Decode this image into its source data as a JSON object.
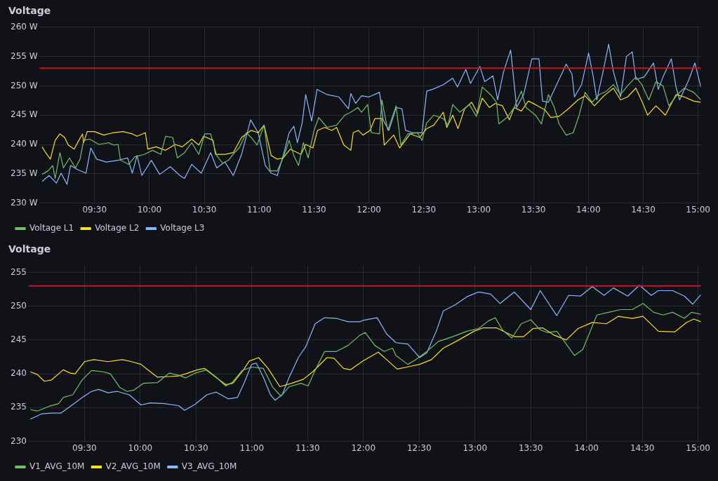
{
  "chart_data": [
    {
      "type": "line",
      "title": "Voltage",
      "xlim": [
        9,
        15.025
      ],
      "xticks": [
        {
          "value": 9.5,
          "label": "09:30"
        },
        {
          "value": 10,
          "label": "10:00"
        },
        {
          "value": 10.5,
          "label": "10:30"
        },
        {
          "value": 11,
          "label": "11:00"
        },
        {
          "value": 11.5,
          "label": "11:30"
        },
        {
          "value": 12,
          "label": "12:00"
        },
        {
          "value": 12.5,
          "label": "12:30"
        },
        {
          "value": 13,
          "label": "13:00"
        },
        {
          "value": 13.5,
          "label": "13:30"
        },
        {
          "value": 14,
          "label": "14:00"
        },
        {
          "value": 14.5,
          "label": "14:30"
        },
        {
          "value": 15,
          "label": "15:00"
        }
      ],
      "ylim": [
        230,
        260
      ],
      "yticks": [
        {
          "value": 230,
          "label": "230 W"
        },
        {
          "value": 235,
          "label": "235 W"
        },
        {
          "value": 240,
          "label": "240 W"
        },
        {
          "value": 245,
          "label": "245 W"
        },
        {
          "value": 250,
          "label": "250 W"
        },
        {
          "value": 255,
          "label": "255 W"
        },
        {
          "value": 260,
          "label": "260 W"
        }
      ],
      "grid": true,
      "legend": "bottom left",
      "ref_lines": [
        {
          "axis": "y",
          "value": 253,
          "color": "#c4162a"
        }
      ],
      "series": [
        {
          "name": "Voltage L1",
          "color": "#73bf69",
          "x": [
            9.022,
            9.076,
            9.119,
            9.141,
            9.184,
            9.216,
            9.271,
            9.325,
            9.368,
            9.4,
            9.455,
            9.541,
            9.628,
            9.671,
            9.714,
            9.736,
            9.812,
            9.866,
            9.952,
            10.028,
            10.104,
            10.147,
            10.212,
            10.255,
            10.32,
            10.385,
            10.45,
            10.504,
            10.558,
            10.613,
            10.667,
            10.721,
            10.775,
            10.818,
            10.883,
            10.926,
            10.981,
            11.045,
            11.1,
            11.165,
            11.219,
            11.273,
            11.316,
            11.359,
            11.403,
            11.446,
            11.5,
            11.543,
            11.619,
            11.706,
            11.781,
            11.835,
            11.9,
            11.933,
            11.989,
            12.022,
            12.097,
            12.118,
            12.172,
            12.248,
            12.291,
            12.355,
            12.441,
            12.484,
            12.527,
            12.592,
            12.678,
            12.721,
            12.764,
            12.829,
            12.915,
            12.98,
            13.033,
            13.109,
            13.163,
            13.184,
            13.259,
            13.324,
            13.389,
            13.432,
            13.518,
            13.572,
            13.636,
            13.69,
            13.733,
            13.798,
            13.862,
            13.916,
            13.97,
            14.034,
            14.099,
            14.164,
            14.228,
            14.293,
            14.357,
            14.433,
            14.487,
            14.551,
            14.616,
            14.68,
            14.734,
            14.81,
            14.874,
            14.96,
            15.025
          ],
          "values": [
            234.9,
            235.5,
            236.4,
            234.2,
            238.6,
            236.0,
            237.7,
            236.0,
            237.5,
            240.7,
            240.9,
            240.0,
            240.3,
            239.9,
            240.0,
            237.3,
            236.6,
            237.9,
            238.3,
            239.0,
            238.3,
            241.4,
            241.2,
            237.7,
            238.6,
            240.3,
            238.3,
            241.8,
            241.8,
            238.1,
            236.8,
            237.3,
            238.6,
            239.4,
            242.0,
            241.2,
            239.9,
            243.3,
            235.5,
            235.5,
            237.7,
            240.7,
            238.1,
            236.4,
            240.3,
            237.7,
            242.4,
            244.6,
            242.9,
            243.3,
            245.0,
            245.5,
            246.3,
            245.5,
            246.8,
            242.0,
            241.8,
            247.6,
            242.4,
            246.6,
            239.9,
            241.8,
            242.0,
            240.7,
            243.7,
            245.0,
            244.4,
            243.3,
            246.8,
            245.5,
            246.8,
            244.8,
            249.8,
            248.5,
            247.2,
            243.5,
            244.6,
            246.3,
            249.1,
            246.3,
            245.0,
            243.5,
            248.5,
            246.3,
            243.5,
            241.6,
            242.0,
            245.0,
            248.9,
            247.2,
            248.5,
            249.1,
            250.2,
            248.5,
            250.0,
            251.5,
            250.2,
            247.6,
            250.7,
            250.0,
            246.6,
            248.5,
            249.6,
            248.9,
            247.6
          ]
        },
        {
          "name": "Voltage L2",
          "color": "#fade2a",
          "x": [
            9.022,
            9.054,
            9.097,
            9.141,
            9.184,
            9.227,
            9.26,
            9.314,
            9.357,
            9.39,
            9.4,
            9.433,
            9.498,
            9.584,
            9.671,
            9.758,
            9.844,
            9.887,
            9.963,
            9.985,
            10.061,
            10.147,
            10.234,
            10.299,
            10.385,
            10.45,
            10.494,
            10.58,
            10.602,
            10.688,
            10.764,
            10.84,
            10.926,
            10.991,
            11.045,
            11.11,
            11.165,
            11.219,
            11.284,
            11.381,
            11.424,
            11.489,
            11.532,
            11.597,
            11.662,
            11.706,
            11.771,
            11.835,
            11.857,
            11.903,
            11.946,
            12.011,
            12.054,
            12.118,
            12.14,
            12.226,
            12.28,
            12.377,
            12.463,
            12.527,
            12.592,
            12.678,
            12.71,
            12.764,
            12.812,
            12.872,
            12.937,
            12.99,
            13.033,
            13.098,
            13.152,
            13.216,
            13.281,
            13.324,
            13.389,
            13.453,
            13.518,
            13.604,
            13.658,
            13.733,
            13.819,
            13.905,
            13.97,
            14.056,
            14.142,
            14.228,
            14.293,
            14.357,
            14.433,
            14.487,
            14.54,
            14.616,
            14.702,
            14.799,
            14.874,
            14.96,
            15.025
          ],
          "values": [
            239.6,
            238.6,
            237.5,
            240.7,
            241.8,
            241.2,
            239.9,
            239.2,
            240.7,
            241.8,
            240.3,
            242.2,
            242.2,
            241.6,
            242.0,
            242.2,
            241.8,
            241.4,
            242.0,
            239.2,
            239.6,
            239.0,
            240.0,
            239.6,
            240.9,
            239.9,
            241.4,
            240.7,
            238.3,
            238.3,
            238.6,
            241.2,
            242.4,
            242.0,
            243.3,
            238.1,
            237.5,
            237.7,
            239.2,
            238.3,
            240.0,
            239.4,
            242.4,
            242.9,
            242.4,
            242.9,
            239.9,
            239.0,
            242.0,
            242.4,
            241.6,
            242.4,
            244.4,
            244.4,
            239.9,
            241.6,
            239.4,
            241.8,
            241.2,
            242.7,
            243.3,
            245.5,
            242.9,
            245.0,
            242.7,
            246.1,
            247.2,
            245.3,
            247.9,
            246.3,
            247.0,
            246.6,
            244.2,
            246.3,
            245.7,
            247.4,
            246.8,
            245.9,
            244.6,
            244.8,
            246.1,
            247.6,
            248.3,
            246.6,
            248.3,
            249.6,
            247.6,
            248.1,
            249.6,
            247.4,
            245.0,
            246.6,
            245.0,
            248.5,
            248.1,
            247.4,
            247.2
          ]
        },
        {
          "name": "Voltage L3",
          "color": "#8ab8ff",
          "x": [
            9.022,
            9.087,
            9.152,
            9.195,
            9.249,
            9.281,
            9.346,
            9.422,
            9.465,
            9.519,
            9.606,
            9.714,
            9.801,
            9.844,
            9.887,
            9.931,
            10.017,
            10.093,
            10.19,
            10.277,
            10.32,
            10.385,
            10.472,
            10.558,
            10.613,
            10.688,
            10.764,
            10.84,
            10.922,
            10.991,
            11.056,
            11.11,
            11.165,
            11.219,
            11.273,
            11.316,
            11.348,
            11.392,
            11.424,
            11.478,
            11.528,
            11.619,
            11.727,
            11.814,
            11.835,
            11.879,
            11.933,
            12.0,
            12.097,
            12.129,
            12.183,
            12.248,
            12.301,
            12.334,
            12.398,
            12.484,
            12.527,
            12.581,
            12.678,
            12.764,
            12.807,
            12.883,
            12.926,
            13.012,
            13.055,
            13.13,
            13.173,
            13.227,
            13.292,
            13.346,
            13.41,
            13.485,
            13.55,
            13.582,
            13.636,
            13.733,
            13.798,
            13.851,
            13.873,
            13.938,
            14.002,
            14.045,
            14.077,
            14.131,
            14.185,
            14.228,
            14.293,
            14.347,
            14.4,
            14.433,
            14.508,
            14.594,
            14.637,
            14.68,
            14.756,
            14.799,
            14.831,
            14.917,
            14.971,
            15.025
          ],
          "values": [
            233.7,
            234.7,
            233.4,
            235.1,
            233.2,
            236.4,
            235.7,
            235.1,
            239.4,
            237.5,
            237.0,
            237.3,
            237.7,
            235.1,
            238.1,
            234.7,
            237.3,
            234.9,
            236.2,
            234.7,
            234.2,
            236.6,
            235.1,
            238.6,
            236.0,
            237.0,
            234.7,
            238.3,
            244.2,
            242.0,
            236.4,
            235.1,
            234.7,
            238.1,
            242.0,
            243.1,
            240.3,
            243.7,
            248.5,
            244.0,
            249.4,
            248.5,
            248.1,
            246.1,
            248.7,
            247.0,
            248.3,
            248.1,
            248.9,
            244.2,
            242.4,
            246.3,
            246.1,
            242.4,
            242.0,
            242.0,
            249.1,
            249.4,
            250.2,
            251.3,
            249.8,
            252.8,
            250.4,
            253.3,
            250.7,
            251.7,
            247.6,
            252.4,
            256.1,
            246.3,
            248.5,
            254.6,
            254.6,
            247.4,
            247.2,
            251.1,
            253.7,
            252.0,
            248.1,
            250.2,
            255.6,
            251.5,
            247.6,
            252.2,
            257.1,
            252.4,
            248.1,
            255.0,
            255.8,
            251.1,
            251.5,
            253.9,
            249.4,
            251.5,
            254.6,
            249.8,
            247.6,
            251.1,
            253.9,
            249.8
          ]
        }
      ]
    },
    {
      "type": "line",
      "title": "Voltage",
      "xlim": [
        9,
        15.025
      ],
      "xticks": [
        {
          "value": 9.5,
          "label": "09:30"
        },
        {
          "value": 10,
          "label": "10:00"
        },
        {
          "value": 10.5,
          "label": "10:30"
        },
        {
          "value": 11,
          "label": "11:00"
        },
        {
          "value": 11.5,
          "label": "11:30"
        },
        {
          "value": 12,
          "label": "12:00"
        },
        {
          "value": 12.5,
          "label": "12:30"
        },
        {
          "value": 13,
          "label": "13:00"
        },
        {
          "value": 13.5,
          "label": "13:30"
        },
        {
          "value": 14,
          "label": "14:00"
        },
        {
          "value": 14.5,
          "label": "14:30"
        },
        {
          "value": 15,
          "label": "15:00"
        }
      ],
      "ylim": [
        230,
        256
      ],
      "yticks": [
        230,
        235,
        240,
        245,
        250,
        255
      ],
      "grid": true,
      "legend": "bottom left",
      "ref_lines": [
        {
          "axis": "y",
          "value": 253,
          "color": "#c4162a"
        }
      ],
      "series": [
        {
          "name": "V1_AVG_10M",
          "color": "#73bf69",
          "x": [
            9.015,
            9.078,
            9.184,
            9.268,
            9.31,
            9.395,
            9.479,
            9.563,
            9.669,
            9.732,
            9.816,
            9.88,
            9.943,
            10.027,
            10.154,
            10.259,
            10.344,
            10.407,
            10.492,
            10.597,
            10.681,
            10.766,
            10.829,
            10.913,
            10.998,
            11.103,
            11.188,
            11.262,
            11.335,
            11.441,
            11.504,
            11.567,
            11.652,
            11.757,
            11.863,
            11.968,
            12.017,
            12.102,
            12.186,
            12.261,
            12.292,
            12.398,
            12.462,
            12.568,
            12.674,
            12.801,
            12.928,
            13.034,
            13.119,
            13.182,
            13.246,
            13.33,
            13.415,
            13.5,
            13.585,
            13.648,
            13.733,
            13.818,
            13.892,
            13.966,
            14.093,
            14.199,
            14.305,
            14.411,
            14.506,
            14.602,
            14.686,
            14.771,
            14.877,
            14.941,
            15.025
          ],
          "values": [
            234.7,
            234.5,
            235.2,
            235.6,
            236.5,
            236.9,
            239.1,
            240.5,
            240.3,
            240.0,
            238.0,
            237.4,
            237.6,
            238.6,
            238.7,
            240.1,
            239.8,
            239.4,
            240.1,
            240.6,
            239.5,
            238.2,
            238.8,
            240.5,
            241.0,
            240.8,
            238.0,
            236.7,
            238.1,
            238.6,
            238.2,
            240.5,
            243.3,
            243.3,
            244.2,
            245.7,
            246.1,
            244.2,
            243.3,
            243.8,
            242.7,
            241.4,
            242.0,
            243.3,
            244.8,
            245.5,
            246.3,
            246.7,
            247.8,
            248.3,
            246.5,
            245.3,
            247.4,
            248.0,
            246.5,
            246.1,
            246.3,
            244.4,
            242.7,
            243.6,
            248.7,
            249.1,
            249.5,
            249.5,
            250.4,
            249.1,
            248.7,
            249.1,
            248.2,
            249.1,
            248.8
          ]
        },
        {
          "name": "V2_AVG_10M",
          "color": "#fade2a",
          "x": [
            9.015,
            9.078,
            9.141,
            9.205,
            9.31,
            9.373,
            9.416,
            9.5,
            9.584,
            9.711,
            9.838,
            9.922,
            10.006,
            10.091,
            10.154,
            10.259,
            10.344,
            10.407,
            10.513,
            10.576,
            10.66,
            10.766,
            10.829,
            10.913,
            10.977,
            11.061,
            11.146,
            11.251,
            11.357,
            11.462,
            11.546,
            11.673,
            11.736,
            11.821,
            11.884,
            11.996,
            12.133,
            12.208,
            12.303,
            12.419,
            12.504,
            12.61,
            12.716,
            12.843,
            12.992,
            13.076,
            13.193,
            13.352,
            13.436,
            13.521,
            13.606,
            13.712,
            13.818,
            13.924,
            14.051,
            14.178,
            14.284,
            14.411,
            14.506,
            14.644,
            14.792,
            14.898,
            14.962,
            15.025
          ],
          "values": [
            240.3,
            239.9,
            238.9,
            239.1,
            240.6,
            240.1,
            240.0,
            241.8,
            242.1,
            241.8,
            242.1,
            241.8,
            241.4,
            240.3,
            239.5,
            239.6,
            239.7,
            240.0,
            240.6,
            240.8,
            239.7,
            238.4,
            238.6,
            240.3,
            241.9,
            242.4,
            240.8,
            238.1,
            238.6,
            239.2,
            240.3,
            242.4,
            242.3,
            240.8,
            240.6,
            241.9,
            243.2,
            242.1,
            240.7,
            241.1,
            241.4,
            242.1,
            243.8,
            244.9,
            246.3,
            246.8,
            246.8,
            245.5,
            245.5,
            246.7,
            246.8,
            245.7,
            245.0,
            246.7,
            247.6,
            247.4,
            248.5,
            248.2,
            248.5,
            246.3,
            246.2,
            247.6,
            248.1,
            247.7
          ]
        },
        {
          "name": "V3_AVG_10M",
          "color": "#8ab8ff",
          "x": [
            9.015,
            9.12,
            9.205,
            9.289,
            9.373,
            9.479,
            9.563,
            9.627,
            9.711,
            9.795,
            9.901,
            10.006,
            10.091,
            10.217,
            10.344,
            10.397,
            10.492,
            10.597,
            10.681,
            10.787,
            10.871,
            10.935,
            10.998,
            11.04,
            11.103,
            11.167,
            11.209,
            11.272,
            11.335,
            11.42,
            11.483,
            11.525,
            11.567,
            11.652,
            11.757,
            11.863,
            11.968,
            11.996,
            12.123,
            12.208,
            12.292,
            12.398,
            12.504,
            12.568,
            12.653,
            12.716,
            12.822,
            12.928,
            13.034,
            13.14,
            13.225,
            13.352,
            13.5,
            13.585,
            13.733,
            13.839,
            13.945,
            14.051,
            14.157,
            14.241,
            14.369,
            14.475,
            14.58,
            14.644,
            14.771,
            14.877,
            14.951,
            15.025
          ],
          "values": [
            233.3,
            234.1,
            234.2,
            234.2,
            235.2,
            236.5,
            237.4,
            237.7,
            237.2,
            237.4,
            236.9,
            235.4,
            235.7,
            235.6,
            235.3,
            234.6,
            235.5,
            236.9,
            237.3,
            236.3,
            236.5,
            238.8,
            241.4,
            241.6,
            239.5,
            236.9,
            236.1,
            236.9,
            239.5,
            242.5,
            244.0,
            245.7,
            247.4,
            248.3,
            248.2,
            247.7,
            247.7,
            247.9,
            248.3,
            245.9,
            244.6,
            244.4,
            242.4,
            243.1,
            246.3,
            249.3,
            250.2,
            251.4,
            252.1,
            251.8,
            250.4,
            252.1,
            249.5,
            252.3,
            248.6,
            251.6,
            251.5,
            252.9,
            251.6,
            252.7,
            251.5,
            253.1,
            251.6,
            252.3,
            252.3,
            251.5,
            250.3,
            251.7
          ]
        }
      ]
    }
  ]
}
